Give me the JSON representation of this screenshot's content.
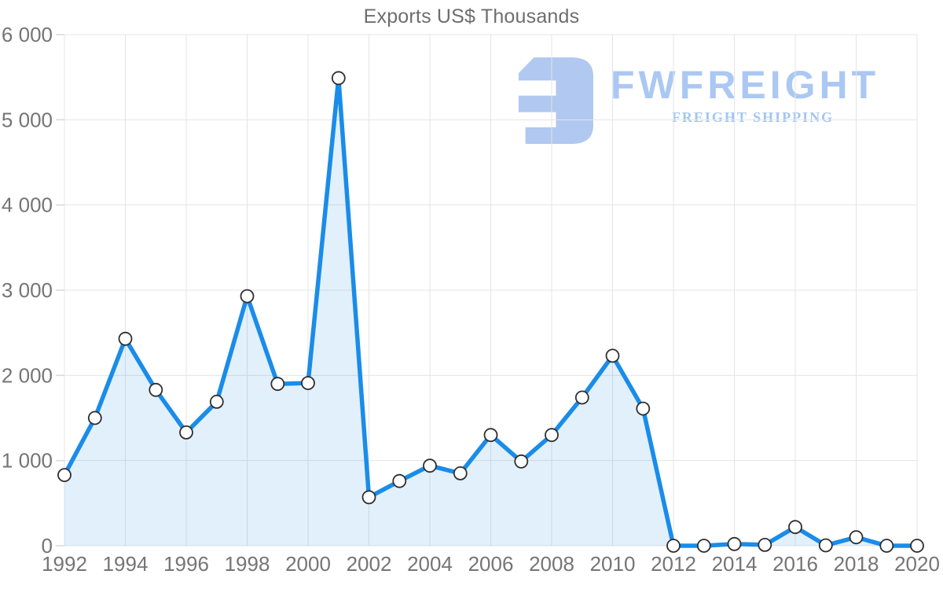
{
  "title": "Exports US$ Thousands",
  "watermark": {
    "brand": "FWFREIGHT",
    "tagline": "FREIGHT SHIPPING",
    "icon": "fwfreight-e-glyph",
    "icon_color": "#adc6f0",
    "brand_color": "#a7c6f3",
    "tagline_color": "#9cc2f3"
  },
  "chart_data": {
    "type": "area",
    "title": "Exports US$ Thousands",
    "xlabel": "",
    "ylabel": "",
    "x": [
      1992,
      1993,
      1994,
      1995,
      1996,
      1997,
      1998,
      1999,
      2000,
      2001,
      2002,
      2003,
      2004,
      2005,
      2006,
      2007,
      2008,
      2009,
      2010,
      2011,
      2012,
      2013,
      2014,
      2015,
      2016,
      2017,
      2018,
      2019,
      2020
    ],
    "series": [
      {
        "name": "Exports US$ Thousands",
        "values": [
          830,
          1500,
          2430,
          1830,
          1330,
          1690,
          2930,
          1900,
          1910,
          5490,
          570,
          760,
          940,
          850,
          1300,
          990,
          1300,
          1740,
          2230,
          1610,
          0,
          0,
          20,
          10,
          220,
          5,
          100,
          0,
          0
        ]
      }
    ],
    "x_tick_labels": [
      "1992",
      "1994",
      "1996",
      "1998",
      "2000",
      "2002",
      "2004",
      "2006",
      "2008",
      "2010",
      "2012",
      "2014",
      "2016",
      "2018",
      "2020"
    ],
    "x_tick_years": [
      1992,
      1994,
      1996,
      1998,
      2000,
      2002,
      2004,
      2006,
      2008,
      2010,
      2012,
      2014,
      2016,
      2018,
      2020
    ],
    "y_ticks": [
      0,
      1000,
      2000,
      3000,
      4000,
      5000,
      6000
    ],
    "y_tick_labels": [
      "0",
      "1 000",
      "2 000",
      "3 000",
      "4 000",
      "5 000",
      "6 000"
    ],
    "xlim": [
      1992,
      2020
    ],
    "ylim": [
      0,
      6000
    ],
    "grid": true,
    "legend_position": "none",
    "marker": "circle",
    "colors": {
      "line": "#1a8ce9",
      "area_fill": "#1e8deb",
      "area_opacity": 0.13,
      "marker_fill": "#ffffff",
      "marker_stroke": "#2f2f2f",
      "gridline": "#e4e4e4",
      "tick": "#d9d9d9",
      "axis_label": "#757575",
      "title": "#6e6e6e"
    }
  }
}
